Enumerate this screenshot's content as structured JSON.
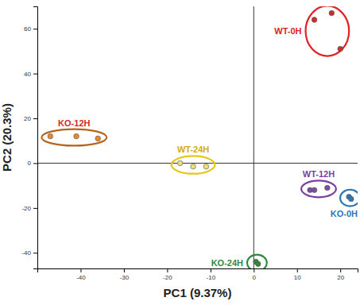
{
  "chart_data": {
    "type": "scatter",
    "x_label": "PC1 (9.37%)",
    "y_label": "PC2 (20.3%)",
    "xlim": [
      -50,
      24
    ],
    "ylim": [
      -47,
      70
    ],
    "xticks": [
      -40,
      -30,
      -20,
      -10,
      0,
      10,
      20
    ],
    "yticks": [
      -40,
      -20,
      0,
      20,
      40,
      60
    ],
    "series": [
      {
        "name": "WT-0H",
        "color": "#c8302b",
        "x": [
          14,
          18,
          20
        ],
        "values": [
          64,
          67,
          51
        ]
      },
      {
        "name": "KO-12H",
        "color": "#e8892d",
        "x": [
          -47,
          -41,
          -36
        ],
        "values": [
          12,
          12,
          11
        ]
      },
      {
        "name": "WT-24H",
        "color": "#e8e07a",
        "x": [
          -17,
          -14,
          -11
        ],
        "values": [
          0,
          -1.5,
          -1.5
        ]
      },
      {
        "name": "WT-12H",
        "color": "#7b4fa0",
        "x": [
          13,
          14,
          17
        ],
        "values": [
          -12,
          -12,
          -11
        ]
      },
      {
        "name": "KO-0H",
        "color": "#2e75b6",
        "x": [
          22,
          22.5
        ],
        "values": [
          -15,
          -16
        ]
      },
      {
        "name": "KO-24H",
        "color": "#2e8b3e",
        "x": [
          0.5,
          1
        ],
        "values": [
          -44,
          -45
        ]
      }
    ]
  }
}
